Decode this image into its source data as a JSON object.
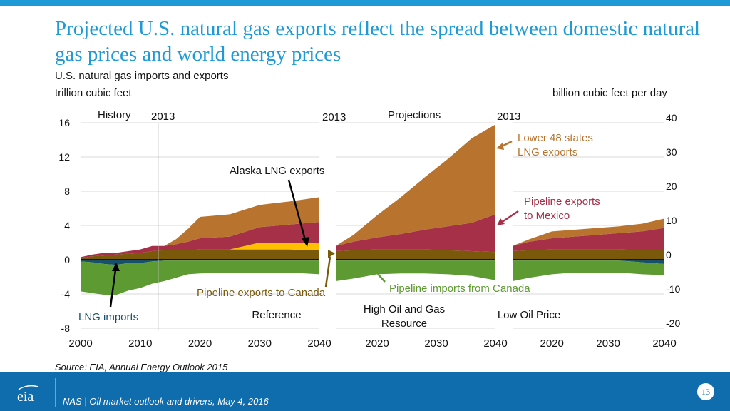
{
  "header": {
    "title": "Projected U.S. natural gas exports reflect the spread between domestic natural gas prices and world energy prices",
    "subtitle": "U.S. natural gas imports and exports",
    "left_unit": "trillion cubic feet",
    "right_unit": "billion cubic feet per day"
  },
  "source": "Source:  EIA, Annual Energy Outlook 2015",
  "footer": {
    "text": "NAS | Oil market outlook and drivers, May 4, 2016",
    "page": "13"
  },
  "colors": {
    "lower48_lng": "#b8742f",
    "pipeline_mexico": "#a53048",
    "alaska_lng": "#ffc000",
    "pipeline_canada": "#7a5a0a",
    "lng_imports": "#16506a",
    "pipeline_imports_canada": "#5e9a32",
    "accent": "#1e9ad6"
  },
  "chart_data": {
    "type": "area",
    "left_axis": {
      "label": "trillion cubic feet",
      "ticks": [
        "16",
        "12",
        "8",
        "4",
        "0",
        "-4",
        "-8"
      ],
      "range": [
        -8,
        16
      ]
    },
    "right_axis": {
      "label": "billion cubic feet per day",
      "ticks": [
        "40",
        "30",
        "20",
        "10",
        "0",
        "-10",
        "-20"
      ],
      "range": [
        -20,
        40
      ]
    },
    "panel_labels": {
      "history": "History",
      "projections": "Projections",
      "year_2013": "2013"
    },
    "panels": [
      {
        "name": "Reference",
        "x_ticks": [
          "2000",
          "2010",
          "2020",
          "2030",
          "2040"
        ],
        "x": [
          2000,
          2002,
          2004,
          2006,
          2008,
          2010,
          2012,
          2014,
          2016,
          2018,
          2020,
          2025,
          2030,
          2035,
          2040
        ],
        "series": [
          {
            "name": "Pipeline exports to Canada",
            "values": [
              0.2,
              0.4,
              0.5,
              0.6,
              0.7,
              0.8,
              1.0,
              1.1,
              1.1,
              1.1,
              1.2,
              1.2,
              1.2,
              1.2,
              1.1
            ]
          },
          {
            "name": "Alaska LNG exports",
            "values": [
              0,
              0,
              0,
              0,
              0,
              0,
              0,
              0,
              0,
              0,
              0,
              0,
              0.8,
              0.8,
              0.8
            ]
          },
          {
            "name": "Pipeline exports to Mexico",
            "values": [
              0.1,
              0.2,
              0.3,
              0.2,
              0.3,
              0.4,
              0.6,
              0.5,
              0.7,
              1.0,
              1.3,
              1.5,
              1.8,
              2.1,
              2.5
            ]
          },
          {
            "name": "Lower 48 states LNG exports",
            "values": [
              0,
              0,
              0,
              0,
              0,
              0,
              0,
              0,
              0.6,
              1.5,
              2.5,
              2.6,
              2.6,
              2.7,
              2.9
            ]
          },
          {
            "name": "LNG imports",
            "values": [
              -0.2,
              -0.3,
              -0.5,
              -0.6,
              -0.4,
              -0.4,
              -0.2,
              -0.1,
              -0.1,
              -0.1,
              -0.1,
              -0.1,
              -0.1,
              -0.1,
              -0.1
            ]
          },
          {
            "name": "Pipeline imports from Canada",
            "values": [
              -3.5,
              -3.6,
              -3.6,
              -3.5,
              -3.2,
              -2.9,
              -2.6,
              -2.4,
              -2.0,
              -1.6,
              -1.5,
              -1.4,
              -1.4,
              -1.4,
              -1.6
            ]
          }
        ]
      },
      {
        "name": "High Oil and Gas Resource",
        "x_ticks": [
          "2020",
          "2030",
          "2040"
        ],
        "x": [
          2013,
          2016,
          2020,
          2024,
          2028,
          2032,
          2036,
          2040
        ],
        "series": [
          {
            "name": "Pipeline exports to Canada",
            "values": [
              1.0,
              1.1,
              1.2,
              1.2,
              1.2,
              1.1,
              1.0,
              0.9
            ]
          },
          {
            "name": "Alaska LNG exports",
            "values": [
              0,
              0,
              0,
              0,
              0,
              0,
              0,
              0
            ]
          },
          {
            "name": "Pipeline exports to Mexico",
            "values": [
              0.6,
              1.0,
              1.4,
              1.8,
              2.3,
              2.8,
              3.3,
              4.4
            ]
          },
          {
            "name": "Lower 48 states LNG exports",
            "values": [
              0,
              0.8,
              2.6,
              4.3,
              6.1,
              7.9,
              9.9,
              10.5
            ]
          },
          {
            "name": "LNG imports",
            "values": [
              -0.1,
              -0.1,
              -0.1,
              -0.1,
              -0.1,
              -0.1,
              -0.1,
              -0.1
            ]
          },
          {
            "name": "Pipeline imports from Canada",
            "values": [
              -2.4,
              -2.1,
              -1.6,
              -1.5,
              -1.5,
              -1.6,
              -1.8,
              -2.3
            ]
          }
        ]
      },
      {
        "name": "Low Oil Price",
        "x_ticks": [
          "2020",
          "2030",
          "2040"
        ],
        "x": [
          2013,
          2016,
          2020,
          2024,
          2028,
          2032,
          2036,
          2040
        ],
        "series": [
          {
            "name": "Pipeline exports to Canada",
            "values": [
              1.0,
              1.1,
              1.2,
              1.2,
              1.2,
              1.2,
              1.1,
              1.1
            ]
          },
          {
            "name": "Alaska LNG exports",
            "values": [
              0,
              0,
              0,
              0,
              0,
              0,
              0,
              0
            ]
          },
          {
            "name": "Pipeline exports to Mexico",
            "values": [
              0.6,
              1.0,
              1.3,
              1.5,
              1.7,
              1.9,
              2.2,
              2.6
            ]
          },
          {
            "name": "Lower 48 states LNG exports",
            "values": [
              0,
              0.3,
              0.8,
              0.8,
              0.8,
              0.8,
              0.9,
              1.1
            ]
          },
          {
            "name": "LNG imports",
            "values": [
              -0.1,
              -0.1,
              -0.1,
              -0.1,
              -0.1,
              -0.1,
              -0.3,
              -0.5
            ]
          },
          {
            "name": "Pipeline imports from Canada",
            "values": [
              -2.4,
              -2.0,
              -1.6,
              -1.4,
              -1.4,
              -1.4,
              -1.4,
              -1.3
            ]
          }
        ]
      }
    ],
    "annotations": {
      "lower48": [
        "Lower 48 states",
        "LNG exports"
      ],
      "mexico": [
        "Pipeline exports",
        "to Mexico"
      ],
      "alaska": "Alaska LNG exports",
      "canada_exports": "Pipeline exports to Canada",
      "canada_imports": "Pipeline imports from Canada",
      "lng_imports": "LNG imports",
      "high_resource": [
        "High Oil and Gas",
        "Resource"
      ]
    }
  }
}
